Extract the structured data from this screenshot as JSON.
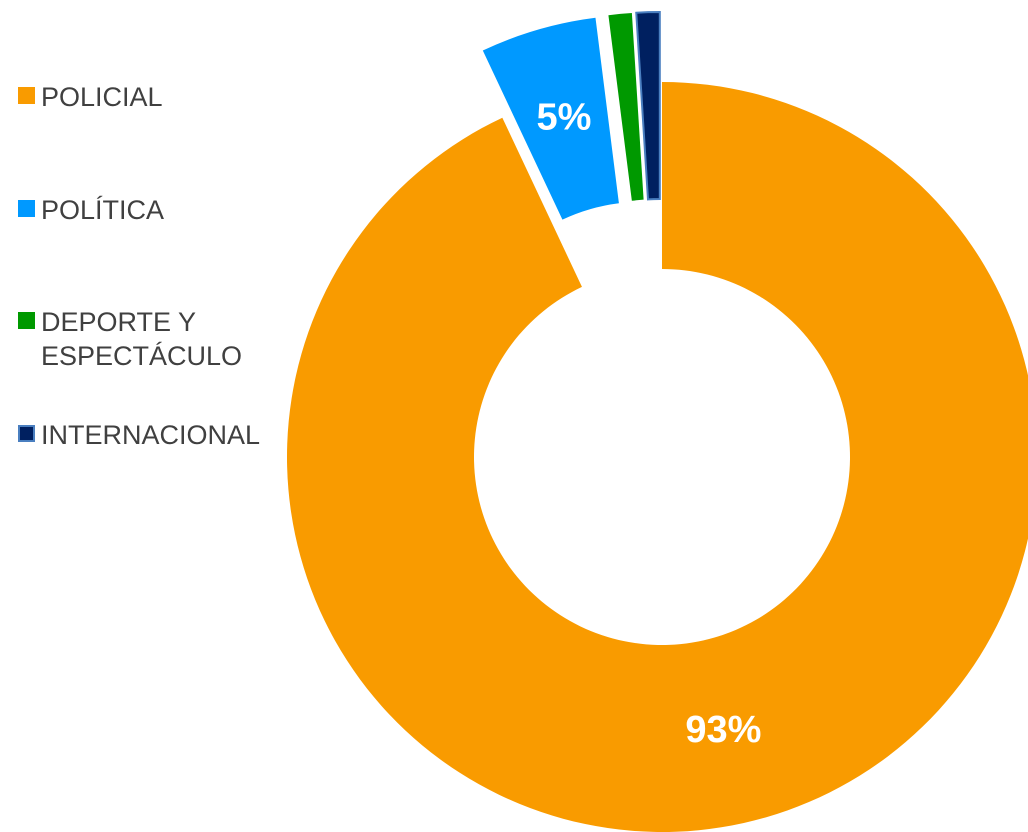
{
  "chart_data": {
    "type": "pie",
    "categories": [
      "POLICIAL",
      "POLÍTICA",
      "DEPORTE Y ESPECTÁCULO",
      "INTERNACIONAL"
    ],
    "values": [
      93,
      5,
      1,
      1
    ],
    "value_labels": [
      "93%",
      "5%",
      null,
      null
    ],
    "colors": [
      "#f99b00",
      "#0099ff",
      "#009900",
      "#002060"
    ],
    "legend": "left"
  }
}
